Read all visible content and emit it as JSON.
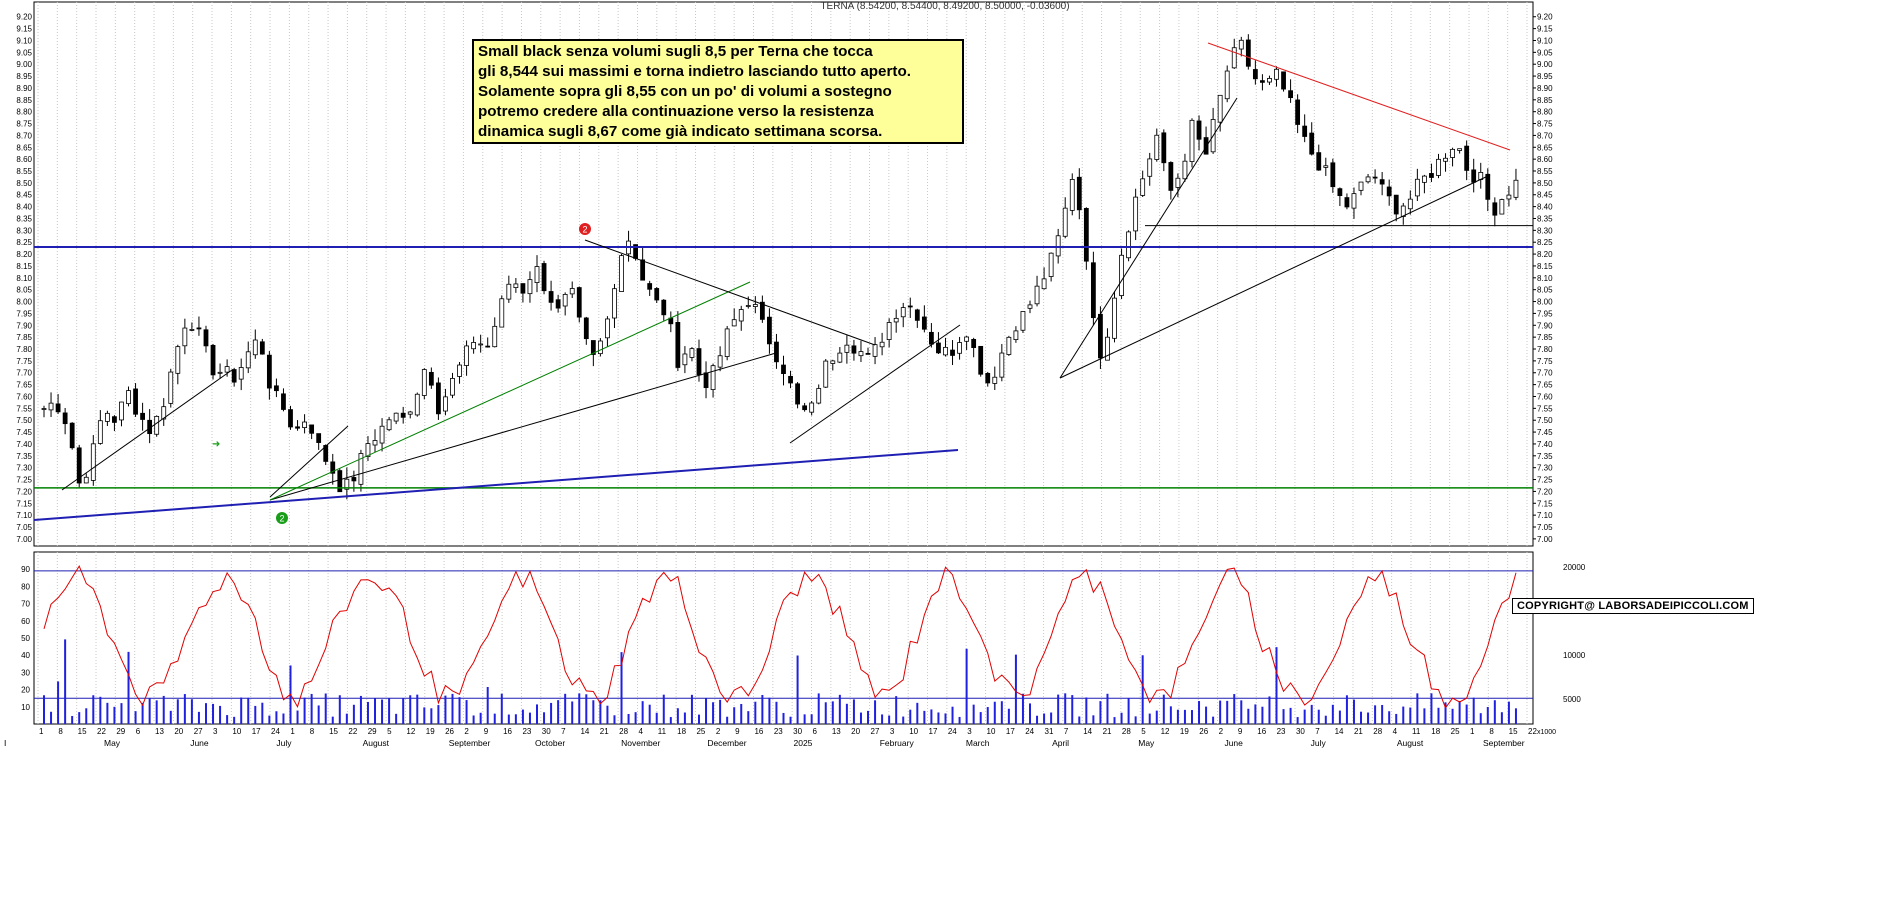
{
  "chart_data": {
    "type": "candlestick",
    "header": "TERNA (8.54200, 8.54400, 8.49200, 8.50000, -0.03600)",
    "annotation_lines": [
      "Small black senza volumi sugli 8,5 per Terna che tocca",
      "gli 8,544 sui massimi e torna indietro lasciando tutto aperto.",
      "Solamente sopra gli 8,55 con un po' di volumi a sostegno",
      "potremo credere alla continuazione verso la resistenza",
      "dinamica sugli 8,67 come già indicato settimana scorsa."
    ],
    "copyright": "COPYRIGHT@ LABORSADEIPICCOLI.COM",
    "price_axis": {
      "ylim": [
        6.97,
        9.22
      ],
      "ticks": [
        "7.00",
        "7.05",
        "7.10",
        "7.15",
        "7.20",
        "7.25",
        "7.30",
        "7.35",
        "7.40",
        "7.45",
        "7.50",
        "7.55",
        "7.60",
        "7.65",
        "7.70",
        "7.75",
        "7.80",
        "7.85",
        "7.90",
        "7.95",
        "8.00",
        "8.05",
        "8.10",
        "8.15",
        "8.20",
        "8.25",
        "8.30",
        "8.35",
        "8.40",
        "8.45",
        "8.50",
        "8.55",
        "8.60",
        "8.65",
        "8.70",
        "8.75",
        "8.80",
        "8.85",
        "8.90",
        "8.95",
        "9.00",
        "9.05",
        "9.10",
        "9.15",
        "9.20"
      ]
    },
    "price_path": [
      7.55,
      7.58,
      7.48,
      7.22,
      7.35,
      7.55,
      7.5,
      7.62,
      7.52,
      7.45,
      7.58,
      7.78,
      7.95,
      7.85,
      7.72,
      7.7,
      7.68,
      7.78,
      7.85,
      7.62,
      7.55,
      7.45,
      7.52,
      7.38,
      7.3,
      7.2,
      7.27,
      7.4,
      7.45,
      7.52,
      7.5,
      7.6,
      7.75,
      7.55,
      7.65,
      7.75,
      7.85,
      7.8,
      7.95,
      8.1,
      8.05,
      8.15,
      8.05,
      7.95,
      8.05,
      7.85,
      7.75,
      7.9,
      8.18,
      8.28,
      8.1,
      8.0,
      7.95,
      7.75,
      7.82,
      7.65,
      7.7,
      7.85,
      7.95,
      8.02,
      7.9,
      7.8,
      7.7,
      7.55,
      7.52,
      7.7,
      7.78,
      7.85,
      7.8,
      7.75,
      7.85,
      7.95,
      8.0,
      7.95,
      7.85,
      7.78,
      7.8,
      7.9,
      7.75,
      7.65,
      7.78,
      7.9,
      7.95,
      8.05,
      8.15,
      8.3,
      8.55,
      8.25,
      7.75,
      7.9,
      8.2,
      8.4,
      8.55,
      8.7,
      8.45,
      8.55,
      8.75,
      8.6,
      8.8,
      9.0,
      9.08,
      8.95,
      8.9,
      8.95,
      8.85,
      8.7,
      8.62,
      8.55,
      8.45,
      8.4,
      8.48,
      8.55,
      8.45,
      8.4,
      8.42,
      8.5,
      8.55,
      8.62,
      8.68,
      8.55,
      8.52,
      8.38,
      8.45,
      8.5
    ],
    "horizontal_lines": [
      8.23,
      7.215,
      8.32
    ],
    "osc_axis_left": {
      "ylim": [
        0,
        100
      ],
      "ticks": [
        "10",
        "20",
        "30",
        "40",
        "50",
        "60",
        "70",
        "80",
        "90"
      ]
    },
    "osc_axis_right": {
      "ticks": [
        "5000",
        "10000",
        "15000",
        "20000"
      ]
    },
    "osc_levels": [
      89,
      15
    ],
    "x_labels": [
      "1",
      "8",
      "15",
      "22",
      "29",
      "6",
      "13",
      "20",
      "27",
      "3",
      "10",
      "17",
      "24",
      "1",
      "8",
      "15",
      "22",
      "29",
      "5",
      "12",
      "19",
      "26",
      "2",
      "9",
      "16",
      "23",
      "30",
      "7",
      "14",
      "21",
      "28",
      "4",
      "11",
      "18",
      "25",
      "2",
      "9",
      "16",
      "23",
      "30",
      "6",
      "13",
      "20",
      "27",
      "3",
      "10",
      "17",
      "24",
      "3",
      "10",
      "17",
      "24",
      "31",
      "7",
      "14",
      "21",
      "28",
      "5",
      "12",
      "19",
      "26",
      "2",
      "9",
      "16",
      "23",
      "30",
      "7",
      "14",
      "21",
      "28",
      "4",
      "11",
      "18",
      "25",
      "1",
      "8",
      "15",
      "22"
    ],
    "month_labels": [
      "May",
      "June",
      "July",
      "August",
      "September",
      "October",
      "November",
      "December",
      "2025",
      "February",
      "March",
      "April",
      "May",
      "June",
      "July",
      "August",
      "September"
    ],
    "axis_note": "x1000"
  },
  "colors": {
    "candle": "#000000",
    "trendline": "#000000",
    "support_blue": "#1f1fb3",
    "support_green": "#008000",
    "resistance_red": "#e02020",
    "oscillator": "#e00000",
    "volume": "#2020e0",
    "grid": "#c8c8c8",
    "annotation_bg": "#ffff99"
  }
}
